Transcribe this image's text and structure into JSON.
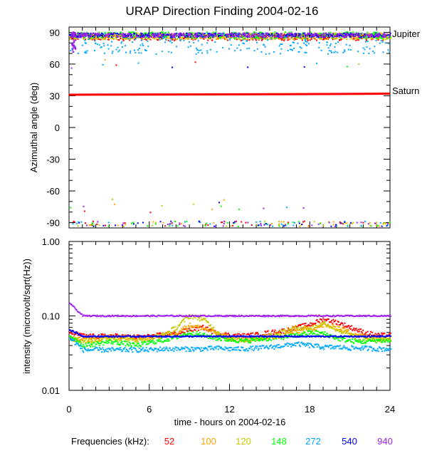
{
  "chart_data": [
    {
      "type": "scatter",
      "title": "URAP Direction Finding  2004-02-16",
      "ylabel": "Azimuthal angle (deg)",
      "xlim": [
        0,
        24
      ],
      "ylim": [
        -95,
        95
      ],
      "yticks": [
        90,
        60,
        30,
        0,
        -30,
        -60,
        -90
      ],
      "grid": false,
      "annotations": [
        {
          "text": "Jupiter",
          "y": 88
        },
        {
          "text": "Saturn",
          "y": 31.5
        }
      ],
      "series": [
        {
          "name": "52",
          "color": "#ff0000",
          "band_center": 86,
          "band_spread": 3,
          "outliers_low": true
        },
        {
          "name": "100",
          "color": "#ffa500",
          "band_center": 87,
          "band_spread": 3,
          "outliers_low": true
        },
        {
          "name": "120",
          "color": "#c8c800",
          "band_center": 87,
          "band_spread": 3,
          "outliers_low": true
        },
        {
          "name": "148",
          "color": "#00ff00",
          "band_center": 88,
          "band_spread": 3,
          "outliers_low": true
        },
        {
          "name": "272",
          "color": "#00a8ff",
          "band_center": 80,
          "band_spread": 10,
          "outliers_low": true
        },
        {
          "name": "540",
          "color": "#0000ff",
          "band_center": 88,
          "band_spread": 2,
          "outliers_low": true
        },
        {
          "name": "940",
          "color": "#a020f0",
          "band_center": 88,
          "band_spread": 2,
          "outliers_low": true
        }
      ],
      "saturn_line": {
        "x": [
          0,
          16,
          24
        ],
        "y": [
          31,
          31.5,
          32
        ],
        "color": "#ff0000"
      },
      "jupiter_line": {
        "x": [
          0,
          24
        ],
        "y": [
          87,
          87
        ],
        "color": "#000000"
      }
    },
    {
      "type": "scatter",
      "ylabel": "intensity (microvolt/sqrt(Hz))",
      "xlabel": "time - hours on 2004-02-16",
      "xlim": [
        0,
        24
      ],
      "ylim": [
        0.01,
        1.0
      ],
      "yscale": "log",
      "xticks": [
        "0",
        "6",
        "12",
        "18",
        "24"
      ],
      "yticks": [
        "1.00",
        "0.10",
        "0.01"
      ],
      "grid": false,
      "series": [
        {
          "name": "52",
          "color": "#ff0000",
          "x": [
            0,
            1,
            2,
            3,
            4,
            5,
            6,
            7,
            8,
            9,
            10,
            11,
            12,
            13,
            14,
            15,
            16,
            17,
            18,
            19,
            20,
            21,
            22,
            23,
            24
          ],
          "y": [
            0.06,
            0.054,
            0.053,
            0.054,
            0.053,
            0.052,
            0.053,
            0.056,
            0.058,
            0.066,
            0.07,
            0.058,
            0.055,
            0.054,
            0.056,
            0.06,
            0.063,
            0.07,
            0.077,
            0.09,
            0.082,
            0.07,
            0.06,
            0.055,
            0.055
          ]
        },
        {
          "name": "100",
          "color": "#ffa500",
          "x": [
            0,
            1,
            2,
            3,
            4,
            5,
            6,
            7,
            8,
            9,
            10,
            11,
            12,
            13,
            14,
            15,
            16,
            17,
            18,
            19,
            20,
            21,
            22,
            23,
            24
          ],
          "y": [
            0.05,
            0.048,
            0.05,
            0.053,
            0.051,
            0.05,
            0.051,
            0.055,
            0.06,
            0.075,
            0.068,
            0.058,
            0.05,
            0.048,
            0.049,
            0.05,
            0.055,
            0.062,
            0.065,
            0.075,
            0.07,
            0.06,
            0.053,
            0.05,
            0.05
          ]
        },
        {
          "name": "120",
          "color": "#c8c800",
          "x": [
            0,
            1,
            2,
            3,
            4,
            5,
            6,
            7,
            8,
            9,
            10,
            11,
            12,
            13,
            14,
            15,
            16,
            17,
            18,
            19,
            20,
            21,
            22,
            23,
            24
          ],
          "y": [
            0.05,
            0.046,
            0.047,
            0.05,
            0.049,
            0.047,
            0.05,
            0.055,
            0.07,
            0.1,
            0.09,
            0.06,
            0.048,
            0.047,
            0.05,
            0.055,
            0.062,
            0.07,
            0.068,
            0.08,
            0.065,
            0.055,
            0.05,
            0.048,
            0.048
          ]
        },
        {
          "name": "148",
          "color": "#00ff00",
          "x": [
            0,
            1,
            2,
            3,
            4,
            5,
            6,
            7,
            8,
            9,
            10,
            11,
            12,
            13,
            14,
            15,
            16,
            17,
            18,
            19,
            20,
            21,
            22,
            23,
            24
          ],
          "y": [
            0.055,
            0.04,
            0.042,
            0.045,
            0.043,
            0.04,
            0.044,
            0.047,
            0.052,
            0.06,
            0.055,
            0.05,
            0.048,
            0.046,
            0.048,
            0.05,
            0.052,
            0.055,
            0.06,
            0.058,
            0.05,
            0.046,
            0.045,
            0.047,
            0.046
          ]
        },
        {
          "name": "272",
          "color": "#00a8ff",
          "x": [
            0,
            1,
            2,
            3,
            4,
            5,
            6,
            7,
            8,
            9,
            10,
            11,
            12,
            13,
            14,
            15,
            16,
            17,
            18,
            19,
            20,
            21,
            22,
            23,
            24
          ],
          "y": [
            0.05,
            0.035,
            0.035,
            0.035,
            0.035,
            0.035,
            0.035,
            0.036,
            0.036,
            0.036,
            0.036,
            0.037,
            0.036,
            0.036,
            0.037,
            0.038,
            0.04,
            0.042,
            0.04,
            0.038,
            0.038,
            0.037,
            0.037,
            0.036,
            0.036
          ]
        },
        {
          "name": "540",
          "color": "#0000ff",
          "x": [
            0,
            1,
            2,
            3,
            4,
            5,
            6,
            7,
            8,
            9,
            10,
            11,
            12,
            13,
            14,
            15,
            16,
            17,
            18,
            19,
            20,
            21,
            22,
            23,
            24
          ],
          "y": [
            0.065,
            0.053,
            0.053,
            0.053,
            0.053,
            0.053,
            0.053,
            0.053,
            0.053,
            0.053,
            0.053,
            0.053,
            0.053,
            0.053,
            0.053,
            0.053,
            0.053,
            0.053,
            0.053,
            0.053,
            0.053,
            0.053,
            0.053,
            0.053,
            0.053
          ]
        },
        {
          "name": "940",
          "color": "#a020f0",
          "x": [
            0,
            0.5,
            1,
            2,
            4,
            6,
            8,
            10,
            12,
            14,
            16,
            18,
            20,
            22,
            24
          ],
          "y": [
            0.15,
            0.12,
            0.1,
            0.1,
            0.1,
            0.1,
            0.1,
            0.1,
            0.1,
            0.1,
            0.1,
            0.1,
            0.1,
            0.1,
            0.1
          ]
        }
      ]
    }
  ],
  "legend": {
    "label": "Frequencies (kHz):",
    "items": [
      {
        "text": "52",
        "color": "#ff0000"
      },
      {
        "text": "100",
        "color": "#ffa500"
      },
      {
        "text": "120",
        "color": "#c8c800"
      },
      {
        "text": "148",
        "color": "#00ff00"
      },
      {
        "text": "272",
        "color": "#00a8ff"
      },
      {
        "text": "540",
        "color": "#0000ff"
      },
      {
        "text": "940",
        "color": "#a020f0"
      }
    ]
  }
}
